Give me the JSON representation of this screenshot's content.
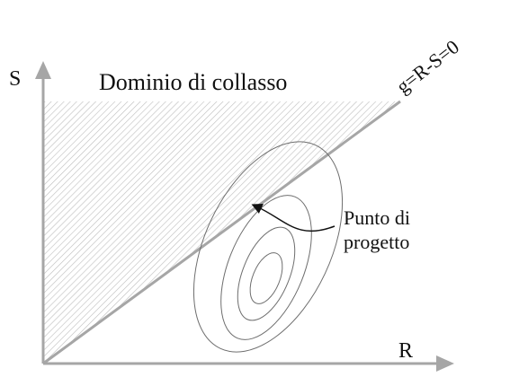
{
  "labels": {
    "s_axis": "S",
    "r_axis": "R",
    "failure_domain": "Dominio di collasso",
    "limit_state": "g=R-S=0",
    "design_point_line1": "Punto di",
    "design_point_line2": "progetto"
  },
  "colors": {
    "axis": "#a6a6a6",
    "hatch": "#bdbdbd",
    "limit_line": "#a6a6a6",
    "contours": "#6e6e6e",
    "text": "#111111"
  }
}
